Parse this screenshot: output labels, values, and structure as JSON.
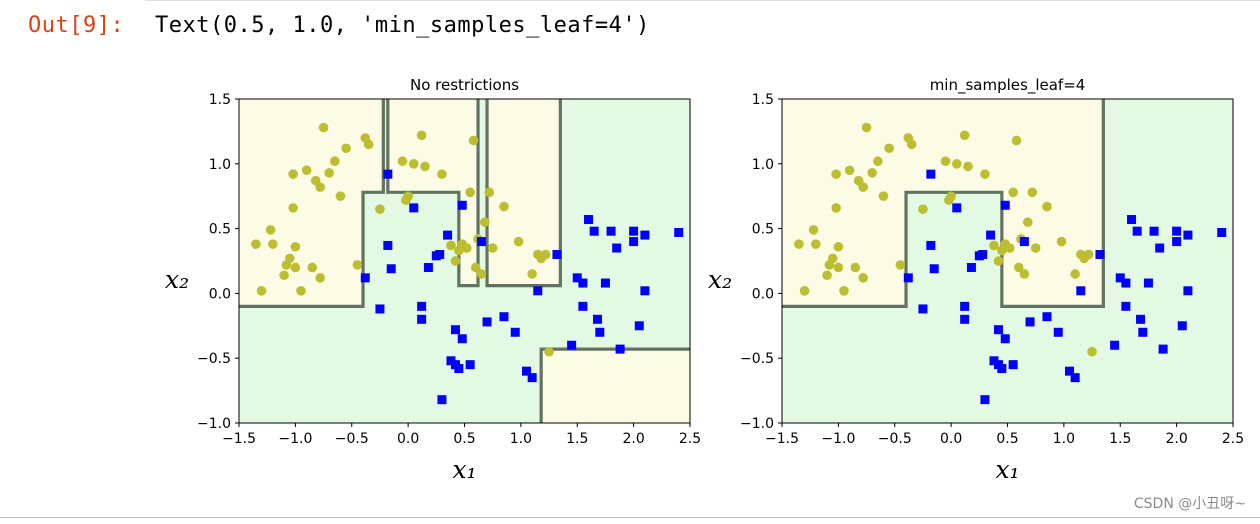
{
  "cell": {
    "prompt": "Out[9]:",
    "text": "Text(0.5, 1.0, 'min_samples_leaf=4')"
  },
  "watermark": "CSDN @小丑呀~",
  "colors": {
    "left_region": "#fcfce6",
    "right_region": "#e4f9e4",
    "boundary": "#4a5a4a",
    "class0": "#bdbd31",
    "class1": "#0000ff"
  },
  "chart_data": [
    {
      "type": "scatter",
      "title": "No restrictions",
      "xlabel": "x₁",
      "ylabel": "x₂",
      "xlim": [
        -1.5,
        2.5
      ],
      "ylim": [
        -1.0,
        1.5
      ],
      "xticks": [
        "−1.5",
        "−1.0",
        "−0.5",
        "0.0",
        "0.5",
        "1.0",
        "1.5",
        "2.0",
        "2.5"
      ],
      "yticks": [
        "−1.0",
        "−0.5",
        "0.0",
        "0.5",
        "1.0",
        "1.5"
      ],
      "boundary": [
        [
          [
            -1.5,
            -0.1
          ],
          [
            -0.4,
            -0.1
          ],
          [
            -0.4,
            0.78
          ],
          [
            -0.22,
            0.78
          ],
          [
            -0.22,
            1.5
          ]
        ],
        [
          [
            -0.18,
            1.5
          ],
          [
            -0.18,
            0.78
          ],
          [
            0.45,
            0.78
          ],
          [
            0.45,
            0.06
          ],
          [
            0.62,
            0.06
          ],
          [
            0.62,
            1.5
          ]
        ],
        [
          [
            0.7,
            1.5
          ],
          [
            0.7,
            0.06
          ],
          [
            1.35,
            0.06
          ],
          [
            1.35,
            1.5
          ]
        ],
        [
          [
            1.18,
            -1.0
          ],
          [
            1.18,
            -0.43
          ],
          [
            2.5,
            -0.43
          ]
        ]
      ],
      "class0": [
        [
          -1.35,
          0.38
        ],
        [
          -1.3,
          0.02
        ],
        [
          -1.22,
          0.49
        ],
        [
          -1.2,
          0.38
        ],
        [
          -1.1,
          0.14
        ],
        [
          -1.08,
          0.22
        ],
        [
          -1.05,
          0.27
        ],
        [
          -1.02,
          0.92
        ],
        [
          -1.02,
          0.66
        ],
        [
          -1.0,
          0.36
        ],
        [
          -1.0,
          0.2
        ],
        [
          -0.95,
          0.02
        ],
        [
          -0.9,
          0.95
        ],
        [
          -0.85,
          0.2
        ],
        [
          -0.82,
          0.87
        ],
        [
          -0.78,
          0.82
        ],
        [
          -0.78,
          0.12
        ],
        [
          -0.75,
          1.28
        ],
        [
          -0.7,
          0.93
        ],
        [
          -0.65,
          1.02
        ],
        [
          -0.6,
          0.75
        ],
        [
          -0.55,
          1.12
        ],
        [
          -0.45,
          0.22
        ],
        [
          -0.38,
          1.2
        ],
        [
          -0.35,
          1.15
        ],
        [
          -0.25,
          0.65
        ],
        [
          -0.05,
          1.02
        ],
        [
          -0.02,
          0.72
        ],
        [
          0.0,
          0.75
        ],
        [
          0.05,
          1.0
        ],
        [
          0.12,
          1.22
        ],
        [
          0.15,
          0.98
        ],
        [
          0.3,
          0.92
        ],
        [
          0.38,
          0.37
        ],
        [
          0.42,
          0.25
        ],
        [
          0.45,
          0.33
        ],
        [
          0.48,
          0.38
        ],
        [
          0.52,
          0.35
        ],
        [
          0.55,
          0.78
        ],
        [
          0.58,
          1.18
        ],
        [
          0.6,
          0.2
        ],
        [
          0.62,
          0.42
        ],
        [
          0.65,
          0.15
        ],
        [
          0.68,
          0.55
        ],
        [
          0.72,
          0.78
        ],
        [
          0.75,
          0.35
        ],
        [
          0.85,
          0.67
        ],
        [
          0.98,
          0.4
        ],
        [
          1.1,
          0.15
        ],
        [
          1.15,
          0.3
        ],
        [
          1.18,
          0.27
        ],
        [
          1.22,
          0.3
        ],
        [
          1.25,
          -0.45
        ]
      ],
      "class1": [
        [
          -0.38,
          0.12
        ],
        [
          -0.25,
          -0.12
        ],
        [
          -0.18,
          0.92
        ],
        [
          -0.18,
          0.37
        ],
        [
          -0.15,
          0.19
        ],
        [
          0.05,
          0.66
        ],
        [
          0.12,
          -0.1
        ],
        [
          0.12,
          -0.2
        ],
        [
          0.18,
          0.2
        ],
        [
          0.25,
          0.29
        ],
        [
          0.28,
          0.3
        ],
        [
          0.3,
          -0.82
        ],
        [
          0.35,
          0.45
        ],
        [
          0.38,
          -0.52
        ],
        [
          0.42,
          -0.55
        ],
        [
          0.42,
          -0.28
        ],
        [
          0.45,
          -0.58
        ],
        [
          0.48,
          -0.35
        ],
        [
          0.48,
          0.68
        ],
        [
          0.55,
          -0.55
        ],
        [
          0.65,
          0.4
        ],
        [
          0.7,
          -0.22
        ],
        [
          0.85,
          -0.18
        ],
        [
          0.95,
          -0.3
        ],
        [
          1.05,
          -0.6
        ],
        [
          1.1,
          -0.65
        ],
        [
          1.15,
          0.02
        ],
        [
          1.32,
          0.3
        ],
        [
          1.45,
          -0.4
        ],
        [
          1.5,
          0.12
        ],
        [
          1.55,
          0.08
        ],
        [
          1.55,
          -0.1
        ],
        [
          1.6,
          0.57
        ],
        [
          1.65,
          0.48
        ],
        [
          1.68,
          -0.2
        ],
        [
          1.7,
          -0.3
        ],
        [
          1.75,
          0.08
        ],
        [
          1.8,
          0.48
        ],
        [
          1.85,
          0.35
        ],
        [
          1.88,
          -0.43
        ],
        [
          2.0,
          0.48
        ],
        [
          2.0,
          0.4
        ],
        [
          2.05,
          -0.25
        ],
        [
          2.1,
          0.45
        ],
        [
          2.1,
          0.02
        ],
        [
          2.4,
          0.47
        ]
      ]
    },
    {
      "type": "scatter",
      "title": "min_samples_leaf=4",
      "xlabel": "x₁",
      "ylabel": "x₂",
      "xlim": [
        -1.5,
        2.5
      ],
      "ylim": [
        -1.0,
        1.5
      ],
      "xticks": [
        "−1.5",
        "−1.0",
        "−0.5",
        "0.0",
        "0.5",
        "1.0",
        "1.5",
        "2.0",
        "2.5"
      ],
      "yticks": [
        "−1.0",
        "−0.5",
        "0.0",
        "0.5",
        "1.0",
        "1.5"
      ],
      "boundary": [
        [
          [
            -1.5,
            -0.1
          ],
          [
            -0.4,
            -0.1
          ],
          [
            -0.4,
            0.78
          ],
          [
            -0.22,
            0.78
          ],
          [
            -0.22,
            0.78
          ],
          [
            0.45,
            0.78
          ],
          [
            0.45,
            -0.1
          ],
          [
            1.35,
            -0.1
          ],
          [
            1.35,
            1.5
          ]
        ]
      ],
      "class0": [
        [
          -1.35,
          0.38
        ],
        [
          -1.3,
          0.02
        ],
        [
          -1.22,
          0.49
        ],
        [
          -1.2,
          0.38
        ],
        [
          -1.1,
          0.14
        ],
        [
          -1.08,
          0.22
        ],
        [
          -1.05,
          0.27
        ],
        [
          -1.02,
          0.92
        ],
        [
          -1.02,
          0.66
        ],
        [
          -1.0,
          0.36
        ],
        [
          -1.0,
          0.2
        ],
        [
          -0.95,
          0.02
        ],
        [
          -0.9,
          0.95
        ],
        [
          -0.85,
          0.2
        ],
        [
          -0.82,
          0.87
        ],
        [
          -0.78,
          0.82
        ],
        [
          -0.78,
          0.12
        ],
        [
          -0.75,
          1.28
        ],
        [
          -0.7,
          0.93
        ],
        [
          -0.65,
          1.02
        ],
        [
          -0.6,
          0.75
        ],
        [
          -0.55,
          1.12
        ],
        [
          -0.45,
          0.22
        ],
        [
          -0.38,
          1.2
        ],
        [
          -0.35,
          1.15
        ],
        [
          -0.25,
          0.65
        ],
        [
          -0.05,
          1.02
        ],
        [
          -0.02,
          0.72
        ],
        [
          0.0,
          0.75
        ],
        [
          0.05,
          1.0
        ],
        [
          0.12,
          1.22
        ],
        [
          0.15,
          0.98
        ],
        [
          0.3,
          0.92
        ],
        [
          0.38,
          0.37
        ],
        [
          0.42,
          0.25
        ],
        [
          0.45,
          0.33
        ],
        [
          0.48,
          0.38
        ],
        [
          0.52,
          0.35
        ],
        [
          0.55,
          0.78
        ],
        [
          0.58,
          1.18
        ],
        [
          0.6,
          0.2
        ],
        [
          0.62,
          0.42
        ],
        [
          0.65,
          0.15
        ],
        [
          0.68,
          0.55
        ],
        [
          0.72,
          0.78
        ],
        [
          0.75,
          0.35
        ],
        [
          0.85,
          0.67
        ],
        [
          0.98,
          0.4
        ],
        [
          1.1,
          0.15
        ],
        [
          1.15,
          0.3
        ],
        [
          1.18,
          0.27
        ],
        [
          1.22,
          0.3
        ],
        [
          1.25,
          -0.45
        ]
      ],
      "class1": [
        [
          -0.38,
          0.12
        ],
        [
          -0.25,
          -0.12
        ],
        [
          -0.18,
          0.92
        ],
        [
          -0.18,
          0.37
        ],
        [
          -0.15,
          0.19
        ],
        [
          0.05,
          0.66
        ],
        [
          0.12,
          -0.1
        ],
        [
          0.12,
          -0.2
        ],
        [
          0.18,
          0.2
        ],
        [
          0.25,
          0.29
        ],
        [
          0.28,
          0.3
        ],
        [
          0.3,
          -0.82
        ],
        [
          0.35,
          0.45
        ],
        [
          0.38,
          -0.52
        ],
        [
          0.42,
          -0.55
        ],
        [
          0.42,
          -0.28
        ],
        [
          0.45,
          -0.58
        ],
        [
          0.48,
          -0.35
        ],
        [
          0.48,
          0.68
        ],
        [
          0.55,
          -0.55
        ],
        [
          0.65,
          0.4
        ],
        [
          0.7,
          -0.22
        ],
        [
          0.85,
          -0.18
        ],
        [
          0.95,
          -0.3
        ],
        [
          1.05,
          -0.6
        ],
        [
          1.1,
          -0.65
        ],
        [
          1.15,
          0.02
        ],
        [
          1.32,
          0.3
        ],
        [
          1.45,
          -0.4
        ],
        [
          1.5,
          0.12
        ],
        [
          1.55,
          0.08
        ],
        [
          1.55,
          -0.1
        ],
        [
          1.6,
          0.57
        ],
        [
          1.65,
          0.48
        ],
        [
          1.68,
          -0.2
        ],
        [
          1.7,
          -0.3
        ],
        [
          1.75,
          0.08
        ],
        [
          1.8,
          0.48
        ],
        [
          1.85,
          0.35
        ],
        [
          1.88,
          -0.43
        ],
        [
          2.0,
          0.48
        ],
        [
          2.0,
          0.4
        ],
        [
          2.05,
          -0.25
        ],
        [
          2.1,
          0.45
        ],
        [
          2.1,
          0.02
        ],
        [
          2.4,
          0.47
        ]
      ]
    }
  ]
}
